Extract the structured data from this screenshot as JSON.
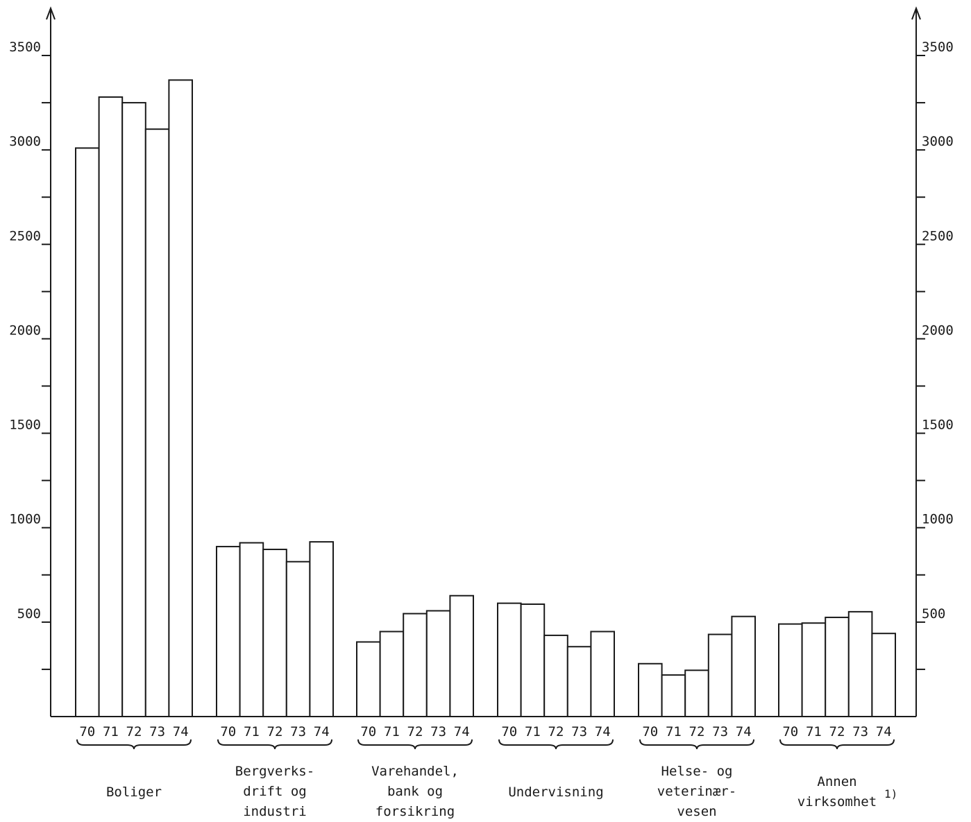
{
  "chart_data": {
    "type": "bar",
    "title": "",
    "xlabel": "",
    "ylabel": "",
    "ylim": [
      0,
      3500
    ],
    "yticks": [
      "500",
      "1000",
      "1500",
      "2000",
      "2500",
      "3000",
      "3500"
    ],
    "grid": false,
    "legend": "none",
    "years": [
      "70",
      "71",
      "72",
      "73",
      "74"
    ],
    "groups": [
      {
        "label": [
          "Boliger"
        ],
        "values": [
          3010,
          3280,
          3250,
          3110,
          3370
        ]
      },
      {
        "label": [
          "Bergverks-",
          "drift og",
          "industri"
        ],
        "values": [
          900,
          920,
          885,
          820,
          925
        ]
      },
      {
        "label": [
          "Varehandel,",
          "bank og",
          "forsikring"
        ],
        "values": [
          395,
          450,
          545,
          560,
          640
        ]
      },
      {
        "label": [
          "Undervisning"
        ],
        "values": [
          600,
          595,
          430,
          370,
          450
        ]
      },
      {
        "label": [
          "Helse- og",
          "veterinær-",
          "vesen"
        ],
        "values": [
          280,
          220,
          245,
          435,
          530
        ]
      },
      {
        "label": [
          "Annen",
          "virksomhet"
        ],
        "footnote": "1)",
        "values": [
          490,
          495,
          525,
          555,
          440
        ]
      }
    ]
  },
  "colors": {
    "ink": "#1a1a1a",
    "bar_fill": "#ffffff",
    "background": "#ffffff"
  }
}
